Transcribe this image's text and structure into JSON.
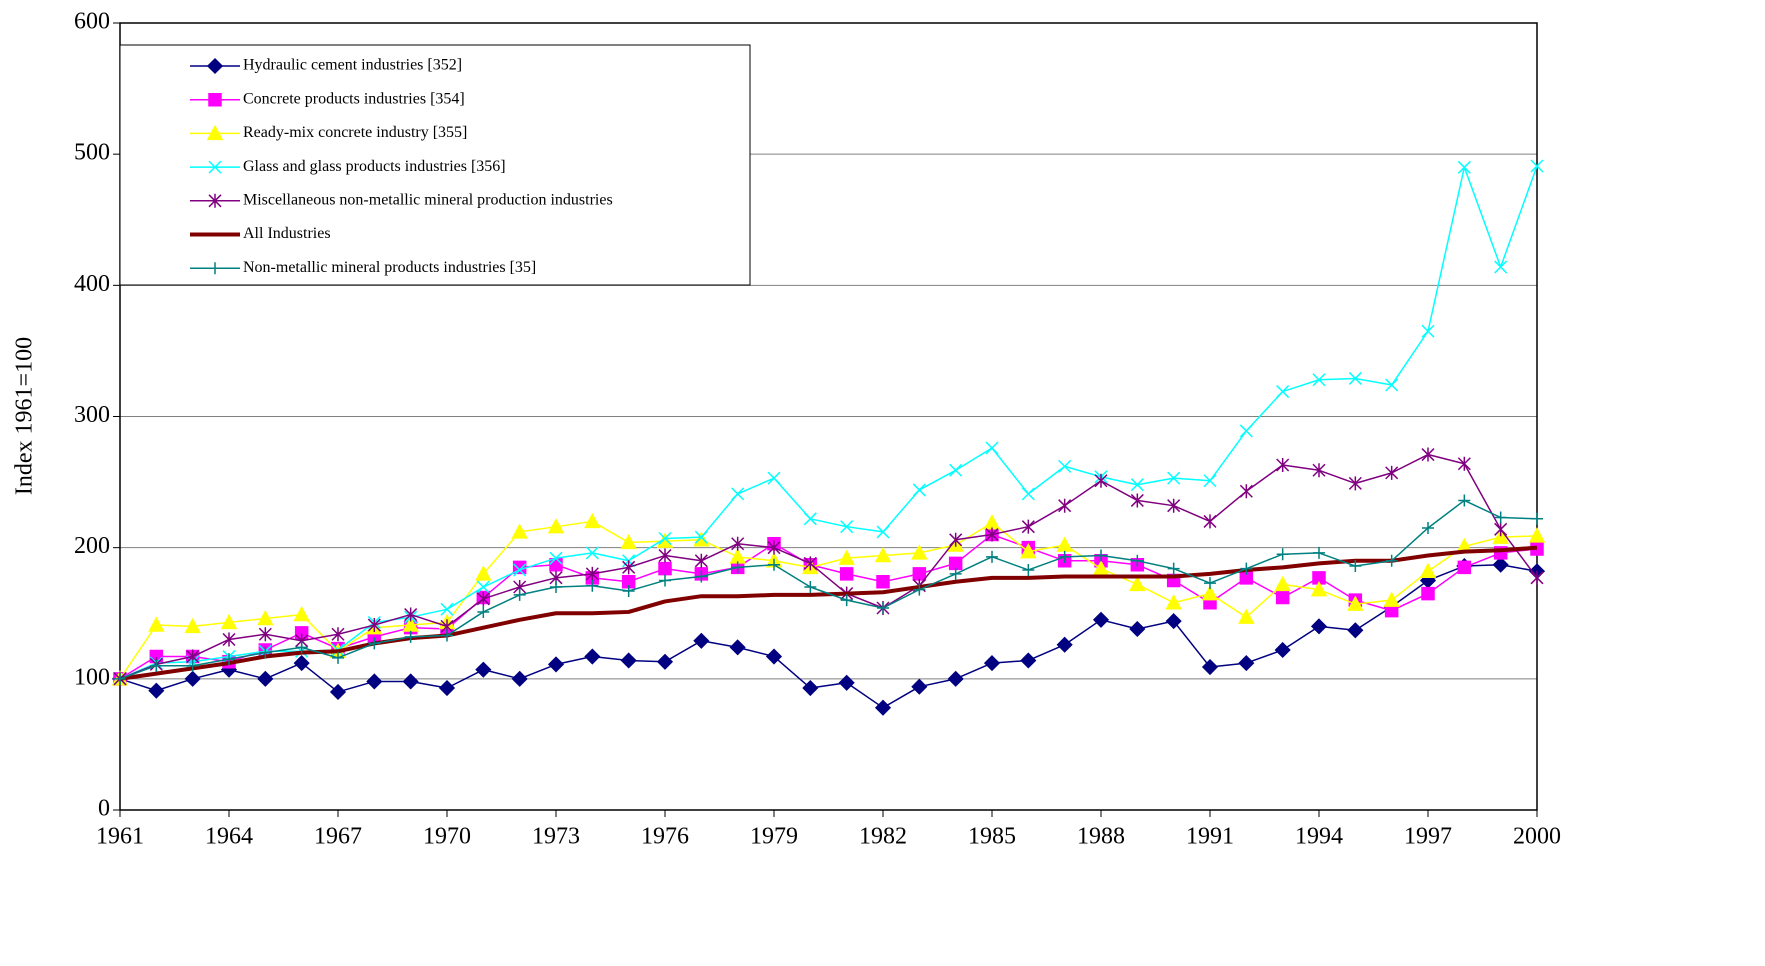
{
  "chart_data": {
    "type": "line",
    "ylabel": "Index 1961=100",
    "x": [
      1961,
      1962,
      1963,
      1964,
      1965,
      1966,
      1967,
      1968,
      1969,
      1970,
      1971,
      1972,
      1973,
      1974,
      1975,
      1976,
      1977,
      1978,
      1979,
      1980,
      1981,
      1982,
      1983,
      1984,
      1985,
      1986,
      1987,
      1988,
      1989,
      1990,
      1991,
      1992,
      1993,
      1994,
      1995,
      1996,
      1997,
      1998,
      1999,
      2000
    ],
    "xlim": [
      1961,
      2000
    ],
    "xticks": [
      1961,
      1964,
      1967,
      1970,
      1973,
      1976,
      1979,
      1982,
      1985,
      1988,
      1991,
      1994,
      1997,
      2000
    ],
    "ylim": [
      0,
      600
    ],
    "yticks": [
      0,
      100,
      200,
      300,
      400,
      500,
      600
    ],
    "grid": true,
    "legend": "upper left",
    "series": [
      {
        "name": "Hydraulic cement industries [352]",
        "color": "#000080",
        "marker": "diamond",
        "line_width": 1.5,
        "values": [
          100,
          91,
          100,
          107,
          100,
          112,
          90,
          98,
          98,
          93,
          107,
          100,
          111,
          117,
          114,
          113,
          129,
          124,
          117,
          93,
          97,
          78,
          94,
          100,
          112,
          114,
          126,
          145,
          138,
          144,
          109,
          112,
          122,
          140,
          137,
          155,
          175,
          186,
          187,
          182
        ]
      },
      {
        "name": "Concrete products industries [354]",
        "color": "#ff00ff",
        "marker": "square",
        "line_width": 1.5,
        "values": [
          100,
          117,
          117,
          113,
          122,
          135,
          123,
          132,
          139,
          138,
          162,
          185,
          187,
          177,
          174,
          184,
          180,
          185,
          203,
          187,
          180,
          174,
          180,
          188,
          210,
          200,
          190,
          190,
          187,
          175,
          158,
          177,
          162,
          177,
          160,
          152,
          165,
          185,
          196,
          199
        ]
      },
      {
        "name": "Ready-mix concrete industry [355]",
        "color": "#ffff00",
        "marker": "triangle",
        "line_width": 1.5,
        "values": [
          100,
          141,
          140,
          143,
          146,
          149,
          121,
          139,
          141,
          143,
          180,
          212,
          216,
          220,
          204,
          205,
          206,
          193,
          190,
          185,
          192,
          194,
          196,
          202,
          219,
          197,
          202,
          184,
          172,
          158,
          165,
          147,
          172,
          168,
          157,
          160,
          182,
          201,
          208,
          209
        ]
      },
      {
        "name": "Glass and glass products industries [356]",
        "color": "#00ffff",
        "marker": "x",
        "line_width": 1.5,
        "values": [
          100,
          112,
          113,
          117,
          121,
          121,
          122,
          143,
          147,
          153,
          170,
          183,
          192,
          196,
          190,
          207,
          208,
          241,
          253,
          222,
          216,
          212,
          244,
          259,
          276,
          241,
          262,
          254,
          248,
          253,
          251,
          289,
          319,
          328,
          329,
          324,
          365,
          490,
          414,
          491
        ]
      },
      {
        "name": "Miscellaneous non-metallic mineral production industries",
        "color": "#800080",
        "marker": "star",
        "line_width": 1.5,
        "values": [
          100,
          111,
          117,
          130,
          134,
          129,
          134,
          141,
          149,
          140,
          161,
          170,
          177,
          180,
          185,
          194,
          190,
          203,
          200,
          188,
          165,
          154,
          171,
          206,
          210,
          216,
          232,
          251,
          236,
          232,
          220,
          243,
          263,
          259,
          249,
          257,
          271,
          264,
          214,
          177
        ]
      },
      {
        "name": "All Industries",
        "color": "#800000",
        "marker": "none",
        "line_width": 4,
        "values": [
          100,
          104,
          108,
          112,
          117,
          120,
          121,
          127,
          131,
          133,
          139,
          145,
          150,
          150,
          151,
          159,
          163,
          163,
          164,
          164,
          165,
          166,
          170,
          174,
          177,
          177,
          178,
          178,
          178,
          178,
          180,
          183,
          185,
          188,
          190,
          190,
          194,
          197,
          198,
          200
        ]
      },
      {
        "name": "Non-metallic mineral products industries [35]",
        "color": "#008080",
        "marker": "plus",
        "line_width": 1.5,
        "values": [
          100,
          110,
          110,
          115,
          120,
          124,
          116,
          127,
          132,
          133,
          151,
          164,
          170,
          171,
          167,
          175,
          178,
          185,
          187,
          170,
          160,
          154,
          168,
          180,
          193,
          183,
          193,
          194,
          190,
          184,
          173,
          184,
          195,
          196,
          186,
          190,
          215,
          236,
          223,
          222
        ]
      }
    ]
  }
}
